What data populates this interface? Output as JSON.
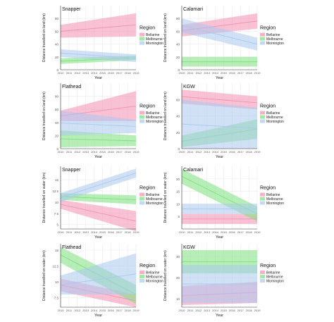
{
  "chart_data": [
    {
      "type": "area",
      "title": "Snapper",
      "ylabel": "Distance travelled on land (km)",
      "xlabel": "Year",
      "x": [
        2010,
        2011,
        2012,
        2013,
        2014,
        2015,
        2016,
        2017,
        2018,
        2019
      ],
      "ylim": [
        0,
        100
      ],
      "yticks": [
        0,
        20,
        40,
        60,
        80
      ],
      "legend_title": "Region",
      "series": [
        {
          "name": "Bellarine",
          "start": [
            50,
            70
          ],
          "end": [
            52,
            88
          ],
          "color": "#f48fb1"
        },
        {
          "name": "Melbourne",
          "start": [
            9,
            18
          ],
          "end": [
            15,
            22
          ],
          "color": "#7be07b"
        },
        {
          "name": "Mornington",
          "start": [
            20,
            32
          ],
          "end": [
            12,
            24
          ],
          "color": "#a9c8ee"
        }
      ]
    },
    {
      "type": "area",
      "title": "Calamari",
      "ylabel": "Distance travelled on land (km)",
      "xlabel": "Year",
      "x": [
        2010,
        2011,
        2012,
        2013,
        2014,
        2015,
        2016,
        2017,
        2018,
        2019
      ],
      "ylim": [
        0,
        100
      ],
      "yticks": [
        0,
        20,
        40,
        60,
        80
      ],
      "legend_title": "Region",
      "series": [
        {
          "name": "Bellarine",
          "start": [
            52,
            70
          ],
          "end": [
            64,
            88
          ],
          "color": "#f48fb1"
        },
        {
          "name": "Melbourne",
          "start": [
            5,
            20
          ],
          "end": [
            5,
            20
          ],
          "color": "#7be07b"
        },
        {
          "name": "Mornington",
          "start": [
            58,
            80
          ],
          "end": [
            30,
            50
          ],
          "color": "#a9c8ee"
        }
      ]
    },
    {
      "type": "area",
      "title": "Flathead",
      "ylabel": "Distance travelled on land (km)",
      "xlabel": "Year",
      "x": [
        2010,
        2011,
        2012,
        2013,
        2014,
        2015,
        2016,
        2017,
        2018,
        2019
      ],
      "ylim": [
        0,
        100
      ],
      "yticks": [
        0,
        20,
        40,
        60,
        80
      ],
      "legend_title": "Region",
      "series": [
        {
          "name": "Bellarine",
          "start": [
            42,
            58
          ],
          "end": [
            42,
            88
          ],
          "color": "#f48fb1"
        },
        {
          "name": "Melbourne",
          "start": [
            2,
            28
          ],
          "end": [
            4,
            20
          ],
          "color": "#7be07b"
        },
        {
          "name": "Mornington",
          "start": [
            20,
            58
          ],
          "end": [
            24,
            44
          ],
          "color": "#a9c8ee"
        }
      ]
    },
    {
      "type": "area",
      "title": "KGW",
      "ylabel": "Distance travelled on land (km)",
      "xlabel": "Year",
      "x": [
        2010,
        2011,
        2012,
        2013,
        2014,
        2015,
        2016,
        2017,
        2018,
        2019
      ],
      "ylim": [
        0,
        80
      ],
      "yticks": [
        0,
        20,
        40,
        60
      ],
      "legend_title": "Region",
      "series": [
        {
          "name": "Bellarine",
          "start": [
            55,
            72
          ],
          "end": [
            48,
            64
          ],
          "color": "#f48fb1"
        },
        {
          "name": "Melbourne",
          "start": [
            2,
            16
          ],
          "end": [
            12,
            36
          ],
          "color": "#7be07b"
        },
        {
          "name": "Mornington",
          "start": [
            0,
            60
          ],
          "end": [
            0,
            50
          ],
          "color": "#a9c8ee"
        }
      ]
    },
    {
      "type": "area",
      "title": "Snapper",
      "ylabel": "Distance travelled on water (km)",
      "xlabel": "Year",
      "x": [
        2010,
        2011,
        2012,
        2013,
        2014,
        2015,
        2016,
        2017,
        2018,
        2019
      ],
      "ylim": [
        4,
        18
      ],
      "yticks": [
        5,
        7.5,
        10,
        12.5,
        15
      ],
      "legend_title": "Region",
      "series": [
        {
          "name": "Bellarine",
          "start": [
            8.5,
            10.5
          ],
          "end": [
            3.5,
            8
          ],
          "color": "#f48fb1"
        },
        {
          "name": "Melbourne",
          "start": [
            10.5,
            12
          ],
          "end": [
            9.5,
            11.5
          ],
          "color": "#7be07b"
        },
        {
          "name": "Mornington",
          "start": [
            10,
            12
          ],
          "end": [
            15.5,
            17.5
          ],
          "color": "#a9c8ee"
        }
      ]
    },
    {
      "type": "area",
      "title": "Calamari",
      "ylabel": "Distance travelled on water (km)",
      "xlabel": "Year",
      "x": [
        2010,
        2011,
        2012,
        2013,
        2014,
        2015,
        2016,
        2017,
        2018,
        2019
      ],
      "ylim": [
        0,
        25
      ],
      "yticks": [
        5,
        10,
        15,
        20
      ],
      "legend_title": "Region",
      "series": [
        {
          "name": "Bellarine",
          "start": [
            2,
            6
          ],
          "end": [
            2,
            6
          ],
          "color": "#f48fb1"
        },
        {
          "name": "Melbourne",
          "start": [
            18,
            24
          ],
          "end": [
            3,
            9
          ],
          "color": "#7be07b"
        },
        {
          "name": "Mornington",
          "start": [
            6,
            10
          ],
          "end": [
            6,
            10
          ],
          "color": "#a9c8ee"
        }
      ]
    },
    {
      "type": "area",
      "title": "Flathead",
      "ylabel": "Distance travelled on water (km)",
      "xlabel": "Year",
      "x": [
        2010,
        2011,
        2012,
        2013,
        2014,
        2015,
        2016,
        2017,
        2018,
        2019
      ],
      "ylim": [
        6,
        16
      ],
      "yticks": [
        7.5,
        10,
        12.5,
        15
      ],
      "legend_title": "Region",
      "series": [
        {
          "name": "Bellarine",
          "start": [
            8.5,
            10.5
          ],
          "end": [
            6,
            8
          ],
          "color": "#f48fb1"
        },
        {
          "name": "Melbourne",
          "start": [
            13,
            15.5
          ],
          "end": [
            6.5,
            9.5
          ],
          "color": "#7be07b"
        },
        {
          "name": "Mornington",
          "start": [
            8,
            11
          ],
          "end": [
            8,
            14.5
          ],
          "color": "#a9c8ee"
        }
      ]
    },
    {
      "type": "area",
      "title": "KGW",
      "ylabel": "Distance travelled on water (km)",
      "xlabel": "Year",
      "x": [
        2010,
        2011,
        2012,
        2013,
        2014,
        2015,
        2016,
        2017,
        2018,
        2019
      ],
      "ylim": [
        6,
        36
      ],
      "yticks": [
        10,
        20,
        30
      ],
      "legend_title": "Region",
      "series": [
        {
          "name": "Bellarine",
          "start": [
            7,
            16
          ],
          "end": [
            8,
            18
          ],
          "color": "#f48fb1"
        },
        {
          "name": "Melbourne",
          "start": [
            22,
            33
          ],
          "end": [
            22,
            33
          ],
          "color": "#7be07b"
        },
        {
          "name": "Mornington",
          "start": [
            8,
            26
          ],
          "end": [
            8,
            26
          ],
          "color": "#a9c8ee"
        }
      ]
    }
  ]
}
